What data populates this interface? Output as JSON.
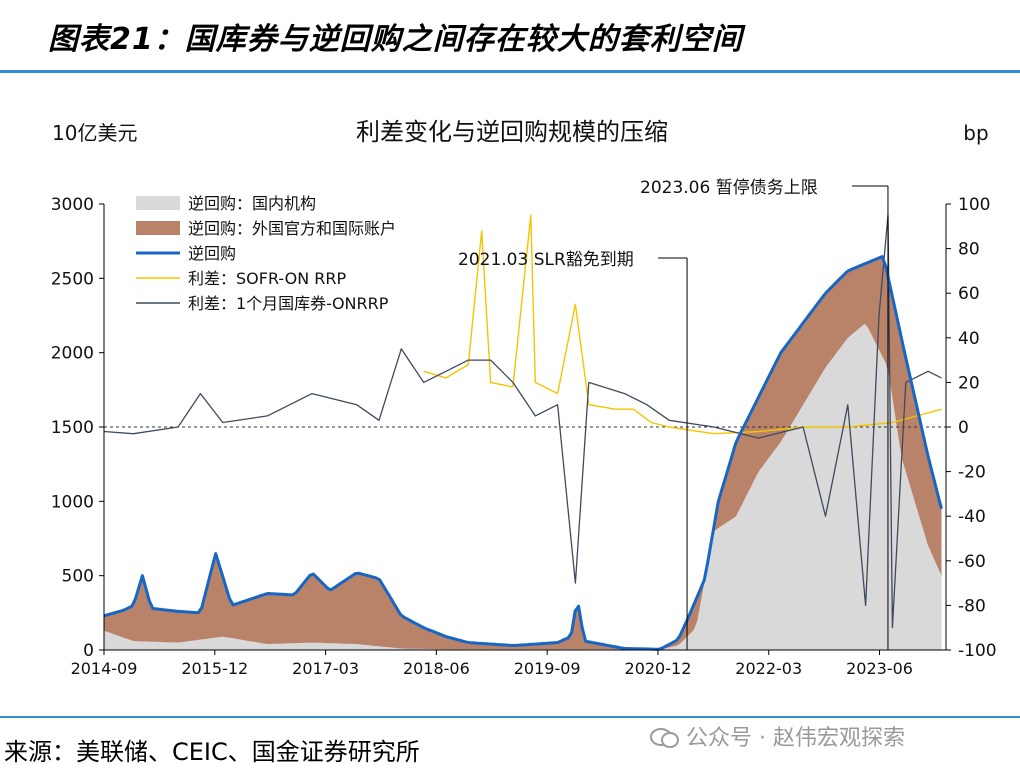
{
  "figure": {
    "title": "图表21：国库券与逆回购之间存在较大的套利空间",
    "source": "来源：美联储、CEIC、国金证券研究所",
    "watermark": "公众号 · 赵伟宏观探索"
  },
  "colors": {
    "accent_rule": "#2f8fd0",
    "domestic": "#d9d9d9",
    "foreign": "#b9836a",
    "rrp_total": "#1766c4",
    "sofr_spread": "#f5c400",
    "tbill_spread": "#3e4a5e"
  },
  "chart_data": {
    "type": "area+line",
    "title": "利差变化与逆回购规模的压缩",
    "left_unit": "10亿美元",
    "right_unit": "bp",
    "x_tick_labels": [
      "2014-09",
      "2015-12",
      "2017-03",
      "2018-06",
      "2019-09",
      "2020-12",
      "2022-03",
      "2023-06"
    ],
    "x_range": [
      2014.67,
      2024.1
    ],
    "y_left": {
      "range": [
        0,
        3000
      ],
      "ticks": [
        0,
        500,
        1000,
        1500,
        2000,
        2500,
        3000
      ]
    },
    "y_right": {
      "range": [
        -100,
        100
      ],
      "ticks": [
        -100,
        -80,
        -60,
        -40,
        -20,
        0,
        20,
        40,
        60,
        80,
        100
      ]
    },
    "legend": [
      {
        "label": "逆回购：国内机构",
        "kind": "area",
        "series": "domestic"
      },
      {
        "label": "逆回购：外国官方和国际账户",
        "kind": "area",
        "series": "foreign"
      },
      {
        "label": "逆回购",
        "kind": "thick-line",
        "series": "rrp_total"
      },
      {
        "label": "利差：SOFR-ON RRP",
        "kind": "line",
        "series": "sofr_spread"
      },
      {
        "label": "利差：1个月国库券-ONRRP",
        "kind": "line",
        "series": "tbill_spread"
      }
    ],
    "annotations": [
      {
        "label": "2021.03 SLR豁免到期",
        "x": 2021.2
      },
      {
        "label": "2023.06 暂停债务上限",
        "x": 2023.45
      }
    ],
    "series": {
      "domestic_bn": {
        "axis": "left",
        "points": [
          [
            2014.67,
            130
          ],
          [
            2015.0,
            60
          ],
          [
            2015.5,
            50
          ],
          [
            2016.0,
            90
          ],
          [
            2016.5,
            40
          ],
          [
            2017.0,
            50
          ],
          [
            2017.5,
            40
          ],
          [
            2018.0,
            10
          ],
          [
            2018.5,
            5
          ],
          [
            2019.0,
            5
          ],
          [
            2019.5,
            5
          ],
          [
            2020.0,
            5
          ],
          [
            2020.5,
            5
          ],
          [
            2020.9,
            5
          ],
          [
            2021.1,
            30
          ],
          [
            2021.3,
            150
          ],
          [
            2021.5,
            800
          ],
          [
            2021.75,
            900
          ],
          [
            2022.0,
            1200
          ],
          [
            2022.25,
            1400
          ],
          [
            2022.5,
            1650
          ],
          [
            2022.75,
            1900
          ],
          [
            2023.0,
            2100
          ],
          [
            2023.2,
            2200
          ],
          [
            2023.45,
            1900
          ],
          [
            2023.6,
            1300
          ],
          [
            2023.75,
            1000
          ],
          [
            2023.9,
            700
          ],
          [
            2024.05,
            500
          ]
        ]
      },
      "total_rrp_bn": {
        "axis": "left",
        "points": [
          [
            2014.67,
            230
          ],
          [
            2014.9,
            270
          ],
          [
            2015.0,
            300
          ],
          [
            2015.1,
            500
          ],
          [
            2015.2,
            280
          ],
          [
            2015.5,
            260
          ],
          [
            2015.75,
            250
          ],
          [
            2015.92,
            650
          ],
          [
            2016.1,
            300
          ],
          [
            2016.5,
            380
          ],
          [
            2016.8,
            370
          ],
          [
            2017.0,
            520
          ],
          [
            2017.2,
            400
          ],
          [
            2017.5,
            520
          ],
          [
            2017.75,
            480
          ],
          [
            2018.0,
            230
          ],
          [
            2018.25,
            150
          ],
          [
            2018.5,
            90
          ],
          [
            2018.75,
            50
          ],
          [
            2019.0,
            40
          ],
          [
            2019.25,
            30
          ],
          [
            2019.5,
            40
          ],
          [
            2019.75,
            50
          ],
          [
            2019.9,
            90
          ],
          [
            2019.97,
            350
          ],
          [
            2020.05,
            60
          ],
          [
            2020.5,
            10
          ],
          [
            2020.9,
            5
          ],
          [
            2021.1,
            70
          ],
          [
            2021.2,
            200
          ],
          [
            2021.4,
            480
          ],
          [
            2021.55,
            1000
          ],
          [
            2021.75,
            1400
          ],
          [
            2022.0,
            1700
          ],
          [
            2022.25,
            2000
          ],
          [
            2022.5,
            2200
          ],
          [
            2022.75,
            2400
          ],
          [
            2023.0,
            2550
          ],
          [
            2023.2,
            2600
          ],
          [
            2023.4,
            2650
          ],
          [
            2023.6,
            2100
          ],
          [
            2023.75,
            1700
          ],
          [
            2023.9,
            1300
          ],
          [
            2024.05,
            950
          ]
        ]
      },
      "sofr_spread_bp": {
        "axis": "right",
        "points": [
          [
            2018.25,
            25
          ],
          [
            2018.5,
            22
          ],
          [
            2018.75,
            28
          ],
          [
            2018.9,
            88
          ],
          [
            2019.0,
            20
          ],
          [
            2019.25,
            18
          ],
          [
            2019.45,
            95
          ],
          [
            2019.5,
            20
          ],
          [
            2019.75,
            15
          ],
          [
            2019.95,
            55
          ],
          [
            2020.1,
            10
          ],
          [
            2020.4,
            8
          ],
          [
            2020.6,
            8
          ],
          [
            2020.8,
            2
          ],
          [
            2021.0,
            0
          ],
          [
            2021.5,
            -3
          ],
          [
            2022.0,
            -2
          ],
          [
            2022.5,
            0
          ],
          [
            2023.0,
            0
          ],
          [
            2023.5,
            2
          ],
          [
            2024.05,
            8
          ]
        ]
      },
      "tbill_spread_bp": {
        "axis": "right",
        "points": [
          [
            2014.67,
            -2
          ],
          [
            2015.0,
            -3
          ],
          [
            2015.5,
            0
          ],
          [
            2015.75,
            15
          ],
          [
            2016.0,
            2
          ],
          [
            2016.5,
            5
          ],
          [
            2017.0,
            15
          ],
          [
            2017.5,
            10
          ],
          [
            2017.75,
            3
          ],
          [
            2018.0,
            35
          ],
          [
            2018.25,
            20
          ],
          [
            2018.5,
            25
          ],
          [
            2018.75,
            30
          ],
          [
            2019.0,
            30
          ],
          [
            2019.25,
            20
          ],
          [
            2019.5,
            5
          ],
          [
            2019.75,
            10
          ],
          [
            2019.95,
            -70
          ],
          [
            2020.1,
            20
          ],
          [
            2020.5,
            15
          ],
          [
            2020.75,
            10
          ],
          [
            2021.0,
            3
          ],
          [
            2021.5,
            0
          ],
          [
            2022.0,
            -5
          ],
          [
            2022.5,
            0
          ],
          [
            2022.75,
            -40
          ],
          [
            2023.0,
            10
          ],
          [
            2023.2,
            -80
          ],
          [
            2023.35,
            50
          ],
          [
            2023.45,
            95
          ],
          [
            2023.5,
            -90
          ],
          [
            2023.65,
            20
          ],
          [
            2023.9,
            25
          ],
          [
            2024.05,
            22
          ]
        ]
      }
    }
  }
}
